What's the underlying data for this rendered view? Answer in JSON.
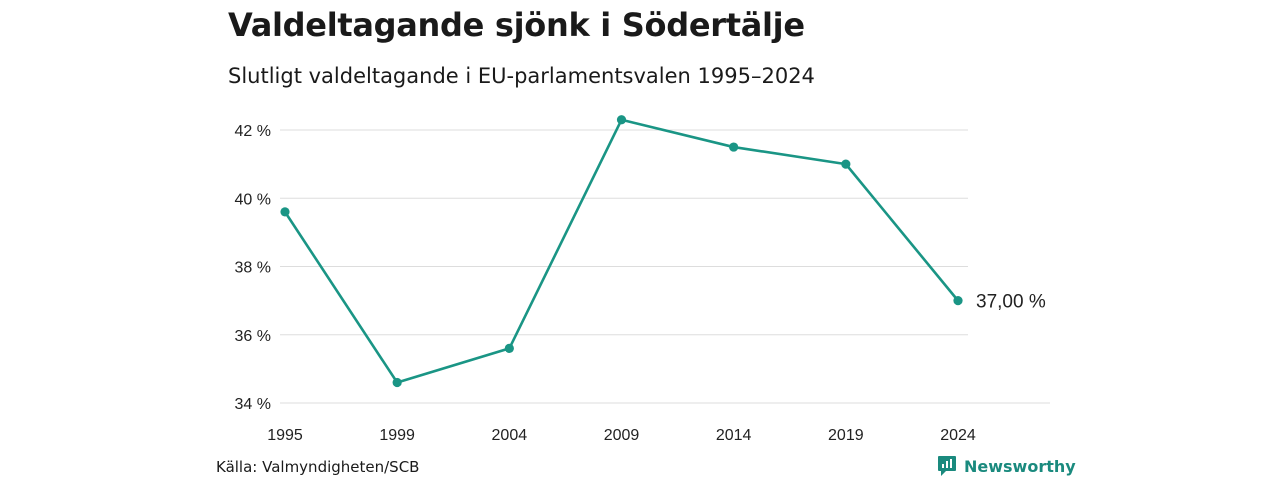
{
  "title": "Valdeltagande sjönk i Södertälje",
  "subtitle": "Slutligt valdeltagande i EU-parlamentsvalen 1995–2024",
  "source": "Källa: Valmyndigheten/SCB",
  "brand": "Newsworthy",
  "colors": {
    "line": "#1a9585",
    "grid": "#dddddd",
    "brand": "#1a8a7e"
  },
  "chart_data": {
    "type": "line",
    "title": "Valdeltagande sjönk i Södertälje",
    "subtitle": "Slutligt valdeltagande i EU-parlamentsvalen 1995–2024",
    "xlabel": "",
    "ylabel": "",
    "categories": [
      "1995",
      "1999",
      "2004",
      "2009",
      "2014",
      "2019",
      "2024"
    ],
    "series": [
      {
        "values": [
          39.6,
          34.6,
          35.6,
          42.3,
          41.5,
          41.0,
          37.0
        ]
      }
    ],
    "ylim": [
      34,
      42
    ],
    "yticks": [
      34,
      36,
      38,
      40,
      42
    ],
    "ytick_labels": [
      "34 %",
      "36 %",
      "38 %",
      "40 %",
      "42 %"
    ],
    "end_label": "37,00 %",
    "grid": true,
    "legend": "none"
  }
}
